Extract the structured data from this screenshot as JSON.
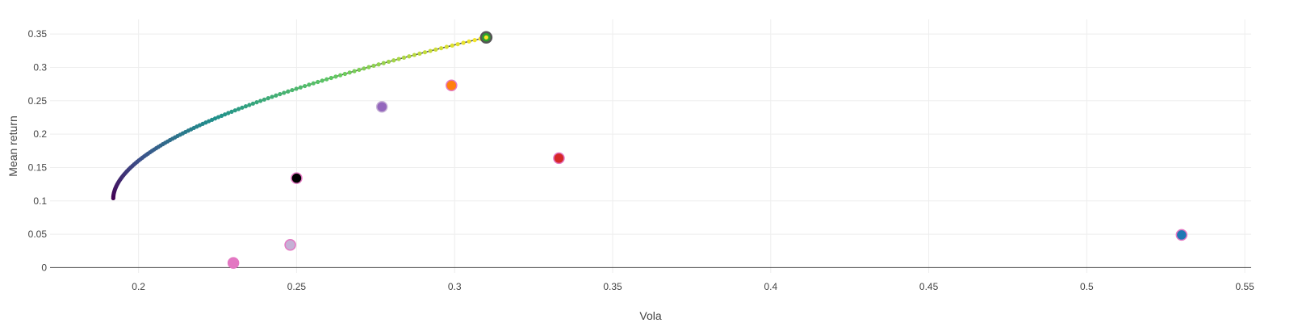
{
  "chart_data": {
    "type": "scatter",
    "title": "",
    "xlabel": "Vola",
    "ylabel": "Mean return",
    "xlim": [
      0.172,
      0.552
    ],
    "ylim": [
      -0.008,
      0.372
    ],
    "grid": true,
    "legend": "none",
    "x_ticks": [
      "0.2",
      "0.25",
      "0.3",
      "0.35",
      "0.4",
      "0.45",
      "0.5",
      "0.55"
    ],
    "x_tick_values": [
      0.2,
      0.25,
      0.3,
      0.35,
      0.4,
      0.45,
      0.5,
      0.55
    ],
    "y_ticks": [
      "0",
      "0.05",
      "0.1",
      "0.15",
      "0.2",
      "0.25",
      "0.3",
      "0.35"
    ],
    "y_tick_values": [
      0,
      0.05,
      0.1,
      0.15,
      0.2,
      0.25,
      0.3,
      0.35
    ],
    "frontier": {
      "min_return": 0.104,
      "max_return": 0.345,
      "min_vola": 0.192,
      "max_vola": 0.31,
      "points": 120,
      "colorscale": [
        "#440154",
        "#3b528b",
        "#21918c",
        "#5ec962",
        "#fde725"
      ]
    },
    "special_point": {
      "x": 0.31,
      "y": 0.345,
      "color": "#2ca02c",
      "ring": "#555555"
    },
    "series": [
      {
        "x": 0.25,
        "y": 0.134,
        "color": "#000000",
        "ring": "#e377c2"
      },
      {
        "x": 0.277,
        "y": 0.241,
        "color": "#9467bd",
        "ring": "#c5b0d5"
      },
      {
        "x": 0.299,
        "y": 0.273,
        "color": "#ff7f0e",
        "ring": "#e377c2"
      },
      {
        "x": 0.333,
        "y": 0.164,
        "color": "#d62728",
        "ring": "#e377c2"
      },
      {
        "x": 0.53,
        "y": 0.049,
        "color": "#1f77b4",
        "ring": "#e377c2"
      },
      {
        "x": 0.23,
        "y": 0.007,
        "color": "#e377c2",
        "ring": "#e377c2"
      },
      {
        "x": 0.248,
        "y": 0.034,
        "color": "#c5b0d5",
        "ring": "#e377c2"
      }
    ]
  }
}
